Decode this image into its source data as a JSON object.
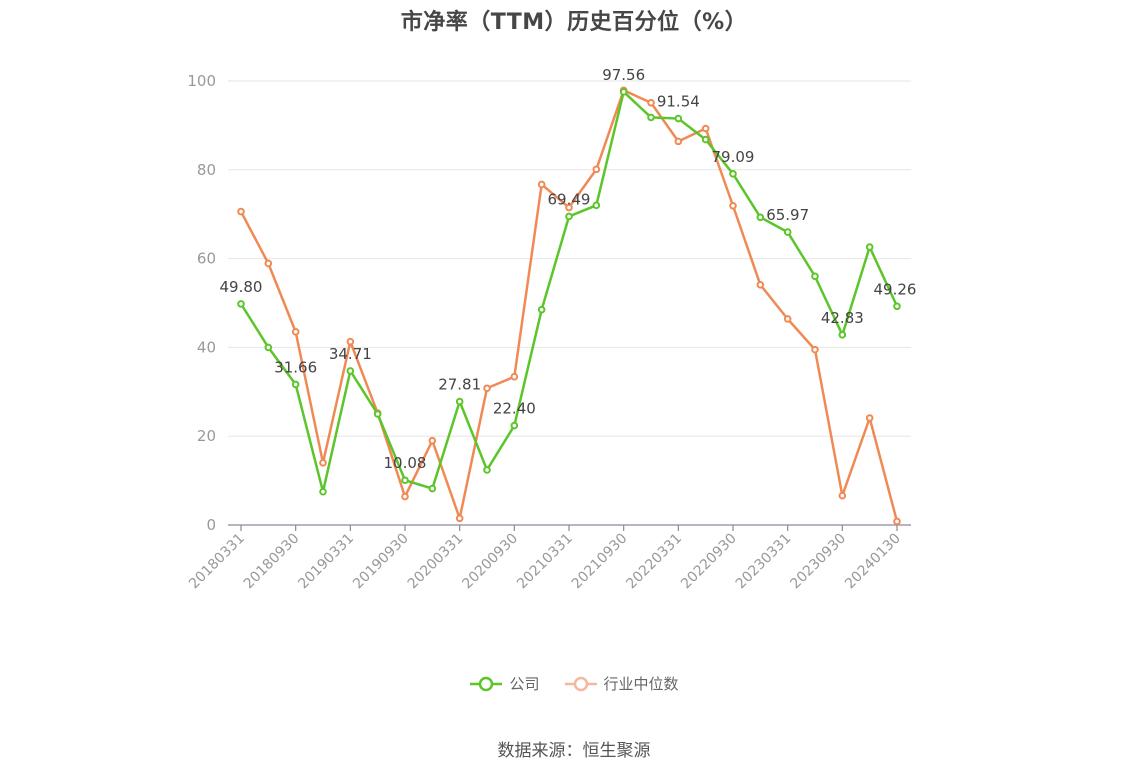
{
  "chart_data": {
    "type": "line",
    "title": "市净率（TTM）历史百分位（%）",
    "ylim": [
      0,
      100
    ],
    "yticks": [
      0,
      20,
      40,
      60,
      80,
      100
    ],
    "x": [
      "20180331",
      "20180630",
      "20180930",
      "20181231",
      "20190331",
      "20190630",
      "20190930",
      "20191231",
      "20200331",
      "20200630",
      "20200930",
      "20201231",
      "20210331",
      "20210630",
      "20210930",
      "20211231",
      "20220331",
      "20220630",
      "20220930",
      "20221231",
      "20230331",
      "20230630",
      "20230930",
      "20231231",
      "20240130"
    ],
    "xtick_labels": [
      "20180331",
      "20180930",
      "20190331",
      "20190930",
      "20200331",
      "20200930",
      "20210331",
      "20210930",
      "20220331",
      "20220930",
      "20230331",
      "20230930",
      "20240130"
    ],
    "series": [
      {
        "name": "公司",
        "color": "#5cc52a",
        "values": [
          49.8,
          40.0,
          31.66,
          7.5,
          34.71,
          25.0,
          10.08,
          8.2,
          27.81,
          12.4,
          22.4,
          48.5,
          69.49,
          72.0,
          97.56,
          91.8,
          91.54,
          86.8,
          79.09,
          69.3,
          65.97,
          56.0,
          42.83,
          62.6,
          49.26
        ]
      },
      {
        "name": "行业中位数",
        "color": "#f08a55",
        "values": [
          70.6,
          58.9,
          43.5,
          14.0,
          41.3,
          25.2,
          6.4,
          19.0,
          1.5,
          30.8,
          33.4,
          76.7,
          71.5,
          80.1,
          97.9,
          95.1,
          86.4,
          89.3,
          71.9,
          54.1,
          46.4,
          39.5,
          6.6,
          24.1,
          0.8
        ]
      }
    ],
    "data_labels": [
      {
        "index": 0,
        "text": "49.80"
      },
      {
        "index": 2,
        "text": "31.66"
      },
      {
        "index": 4,
        "text": "34.71"
      },
      {
        "index": 6,
        "text": "10.08"
      },
      {
        "index": 8,
        "text": "27.81"
      },
      {
        "index": 10,
        "text": "22.40"
      },
      {
        "index": 12,
        "text": "69.49"
      },
      {
        "index": 14,
        "text": "97.56"
      },
      {
        "index": 16,
        "text": "91.54"
      },
      {
        "index": 18,
        "text": "79.09"
      },
      {
        "index": 20,
        "text": "65.97"
      },
      {
        "index": 22,
        "text": "42.83"
      },
      {
        "index": 24,
        "text": "49.26"
      }
    ],
    "grid": true,
    "legend_position": "bottom-center"
  },
  "legend": {
    "company": "公司",
    "industry": "行业中位数"
  },
  "source": "数据来源：恒生聚源"
}
